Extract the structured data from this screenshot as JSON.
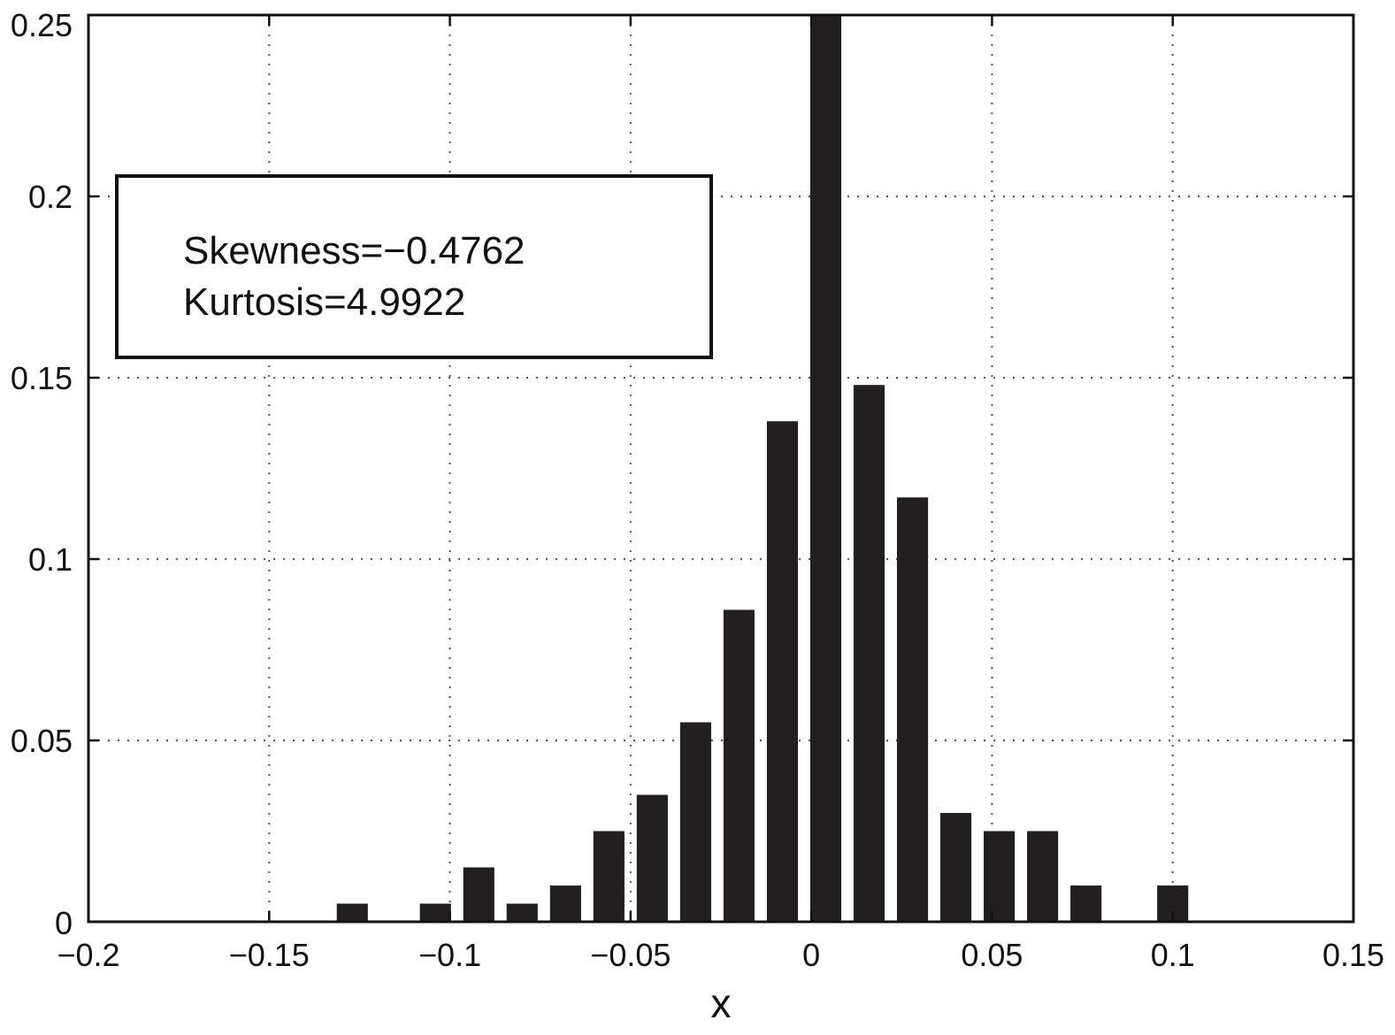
{
  "chart_data": {
    "type": "bar",
    "title": "",
    "xlabel": "x",
    "ylabel": "",
    "xlim": [
      -0.2,
      0.15
    ],
    "ylim": [
      0,
      0.25
    ],
    "grid": true,
    "bar_width": 0.01,
    "x_ticks": [
      -0.2,
      -0.15,
      -0.1,
      -0.05,
      0,
      0.05,
      0.1,
      0.15
    ],
    "x_tick_labels": [
      "−0.2",
      "−0.15",
      "−0.1",
      "−0.05",
      "0",
      "0.05",
      "0.1",
      "0.15"
    ],
    "y_ticks": [
      0,
      0.05,
      0.1,
      0.15,
      0.2,
      0.25
    ],
    "y_tick_labels": [
      "0",
      "0.05",
      "0.1",
      "0.15",
      "0.2",
      "0.25"
    ],
    "bars": [
      {
        "x": -0.127,
        "value": 0.005
      },
      {
        "x": -0.104,
        "value": 0.005
      },
      {
        "x": -0.092,
        "value": 0.015
      },
      {
        "x": -0.08,
        "value": 0.005
      },
      {
        "x": -0.068,
        "value": 0.01
      },
      {
        "x": -0.056,
        "value": 0.025
      },
      {
        "x": -0.044,
        "value": 0.035
      },
      {
        "x": -0.032,
        "value": 0.055
      },
      {
        "x": -0.02,
        "value": 0.086
      },
      {
        "x": -0.008,
        "value": 0.138
      },
      {
        "x": 0.004,
        "value": 0.25
      },
      {
        "x": 0.016,
        "value": 0.148
      },
      {
        "x": 0.028,
        "value": 0.117
      },
      {
        "x": 0.04,
        "value": 0.03
      },
      {
        "x": 0.052,
        "value": 0.025
      },
      {
        "x": 0.064,
        "value": 0.025
      },
      {
        "x": 0.076,
        "value": 0.01
      },
      {
        "x": 0.1,
        "value": 0.01
      }
    ],
    "annotation": {
      "lines": [
        "Skewness=−0.4762",
        "Kurtosis=4.9922"
      ],
      "placement": "upper-left"
    },
    "colors": {
      "bar": "#231f20",
      "axis": "#111111",
      "grid": "#555555"
    }
  }
}
